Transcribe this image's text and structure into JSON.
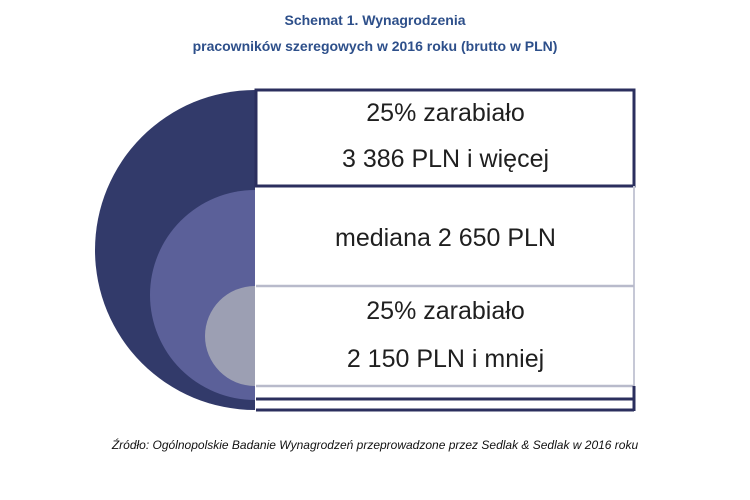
{
  "title": {
    "line1": "Schemat 1. Wynagrodzenia",
    "line2": "pracowników szeregowych w 2016 roku (brutto w PLN)"
  },
  "bands": {
    "top": {
      "line1": "25% zarabiało",
      "line2": "3 386 PLN i więcej"
    },
    "middle": {
      "line1": "mediana 2 650 PLN"
    },
    "bottom": {
      "line1": "25% zarabiało",
      "line2": "2 150 PLN i mniej"
    }
  },
  "source": "Źródło: Ogólnopolskie Badanie Wynagrodzeń przeprowadzone przez Sedlak & Sedlak w 2016 roku",
  "colors": {
    "title": "#2d4f8a",
    "outer_arc": "#323a6a",
    "middle_arc": "#5b6099",
    "inner_arc": "#9c9fb3",
    "frame": "#2b2f5e",
    "divider": "#c6c8d6"
  }
}
